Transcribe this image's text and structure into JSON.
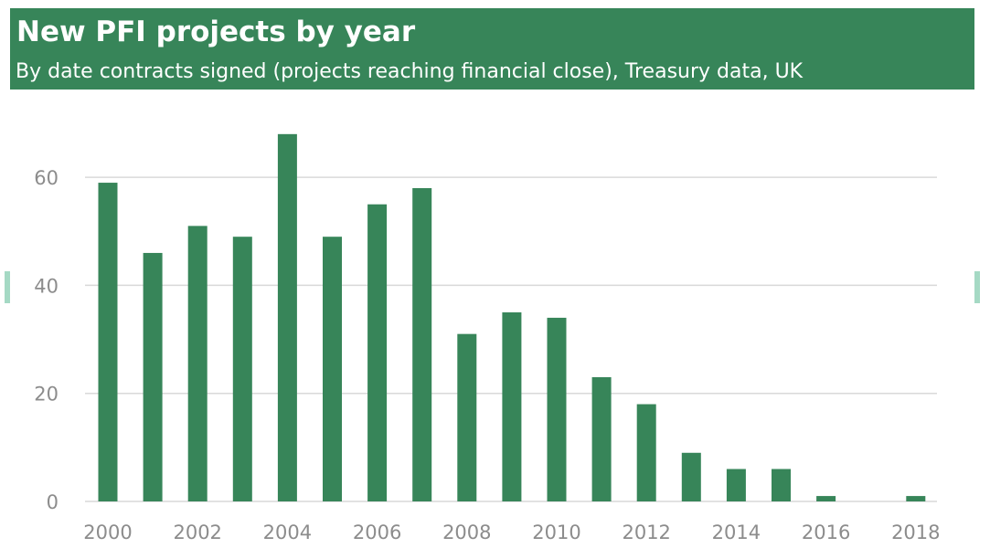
{
  "chart_data": {
    "type": "bar",
    "title": "New PFI projects by year",
    "subtitle": "By date contracts signed (projects reaching financial close), Treasury data, UK",
    "xlabel": "",
    "ylabel": "",
    "categories": [
      "2000",
      "2001",
      "2002",
      "2003",
      "2004",
      "2005",
      "2006",
      "2007",
      "2008",
      "2009",
      "2010",
      "2011",
      "2012",
      "2013",
      "2014",
      "2015",
      "2016",
      "2017",
      "2018"
    ],
    "values": [
      59,
      46,
      51,
      49,
      68,
      49,
      55,
      58,
      31,
      35,
      34,
      23,
      18,
      9,
      6,
      6,
      1,
      0,
      1
    ],
    "x_tick_labels": [
      "2000",
      "2002",
      "2004",
      "2006",
      "2008",
      "2010",
      "2012",
      "2014",
      "2016",
      "2018"
    ],
    "y_ticks": [
      0,
      20,
      40,
      60
    ],
    "ylim": [
      0,
      70
    ],
    "grid": true,
    "legend": "none",
    "colors": {
      "bar": "#378559",
      "header": "#378559",
      "grid": "#d9d9d9",
      "tick_text": "#8c8c8c"
    }
  }
}
